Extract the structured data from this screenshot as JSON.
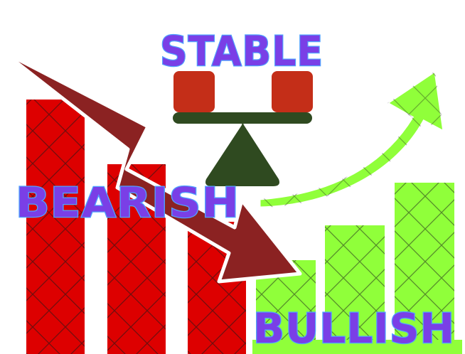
{
  "labels": {
    "stable": "STABLE",
    "bearish": "BEARISH",
    "bullish": "BULLISH"
  },
  "colors": {
    "bear_bar": "#dd0000",
    "bear_arrow": "#8b2222",
    "bull_bar": "#90ff3a",
    "scale_plate": "#c42e18",
    "scale_body": "#2f4a20",
    "text_fill": "#7a3fe6",
    "text_stroke": "#4fa3ff",
    "grid_line": "#1a1a1a"
  },
  "icons": {
    "bear_arrow": "down-trend-arrow-icon",
    "bull_arrow": "up-trend-arrow-icon",
    "balance": "balance-scale-icon"
  }
}
